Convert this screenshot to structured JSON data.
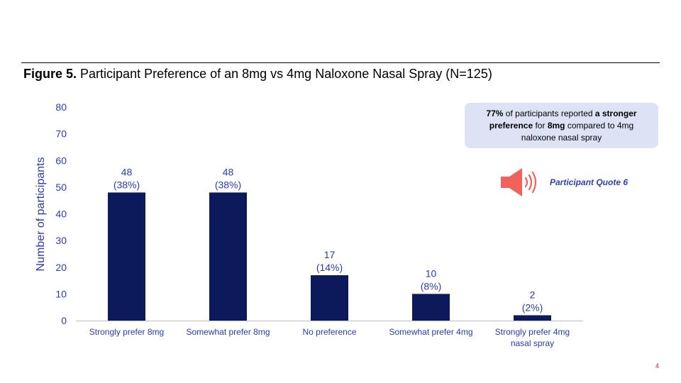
{
  "slide": {
    "figure_label": "Figure 5.",
    "figure_title": "Participant Preference of an 8mg vs 4mg Naloxone Nasal Spray (N=125)",
    "page_number": "4"
  },
  "callout": {
    "pct": "77%",
    "text1": " of participants reported ",
    "bold1": "a stronger preference",
    "text2": " for ",
    "bold2": "8mg",
    "text3": " compared to 4mg naloxone nasal spray"
  },
  "quote": {
    "label": "Participant Quote 6",
    "icon": "speaker-icon",
    "icon_color": "#f0625a"
  },
  "chart_data": {
    "type": "bar",
    "title": "",
    "xlabel": "",
    "ylabel": "Number of participants",
    "ylim": [
      0,
      80
    ],
    "yticks": [
      0,
      10,
      20,
      30,
      40,
      50,
      60,
      70,
      80
    ],
    "grid": false,
    "categories": [
      [
        "Strongly prefer 8mg"
      ],
      [
        "Somewhat prefer 8mg"
      ],
      [
        "No preference"
      ],
      [
        "Somewhat prefer 4mg"
      ],
      [
        "Strongly prefer 4mg",
        "nasal spray"
      ]
    ],
    "values": [
      48,
      48,
      17,
      10,
      2
    ],
    "labels": [
      [
        "48",
        "(38%)"
      ],
      [
        "48",
        "(38%)"
      ],
      [
        "17",
        "(14%)"
      ],
      [
        "10",
        "(8%)"
      ],
      [
        "2",
        "(2%)"
      ]
    ],
    "colors": {
      "bar": "#0c1a5c",
      "tick_text": "#2a3bb0",
      "axis_title": "#2a3bb0",
      "category_text": "#2a3bb0",
      "axis_line": "#bfbfbf"
    }
  }
}
